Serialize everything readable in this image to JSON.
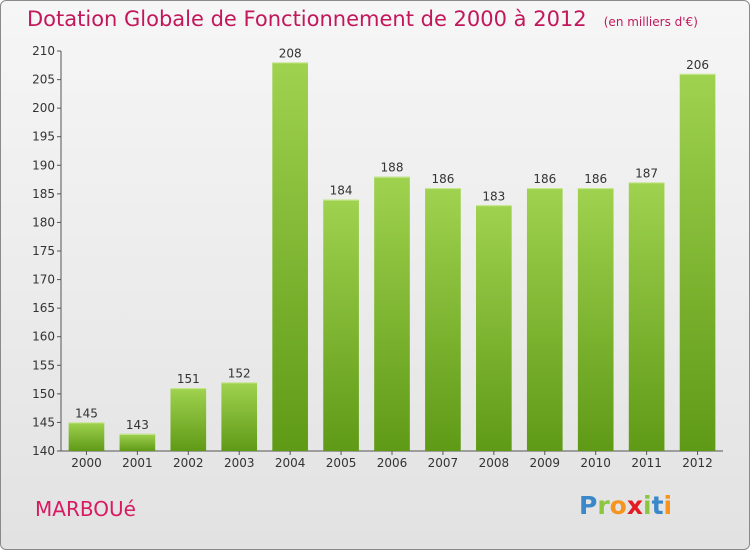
{
  "title": "Dotation Globale de Fonctionnement de 2000 à 2012",
  "unit_note": "(en milliers d'€)",
  "commune": "MARBOUé",
  "logo": {
    "letters": [
      "P",
      "r",
      "o",
      "x",
      "i",
      "t",
      "i"
    ],
    "colors": [
      "#3a88c9",
      "#8cc63f",
      "#f7941d",
      "#e31b23",
      "#8cc63f",
      "#3a88c9",
      "#f7941d"
    ]
  },
  "colors": {
    "bar_top": "#9fd24f",
    "bar_bottom": "#5f9a16",
    "title": "#c2185b"
  },
  "chart_data": {
    "type": "bar",
    "categories": [
      "2000",
      "2001",
      "2002",
      "2003",
      "2004",
      "2005",
      "2006",
      "2007",
      "2008",
      "2009",
      "2010",
      "2011",
      "2012"
    ],
    "values": [
      145,
      143,
      151,
      152,
      208,
      184,
      188,
      186,
      183,
      186,
      186,
      187,
      206
    ],
    "title": "Dotation Globale de Fonctionnement de 2000 à 2012",
    "ylim": [
      140,
      210
    ],
    "yticks": [
      140,
      145,
      150,
      155,
      160,
      165,
      170,
      175,
      180,
      185,
      190,
      195,
      200,
      205,
      210
    ],
    "grid": false,
    "legend": "none"
  }
}
